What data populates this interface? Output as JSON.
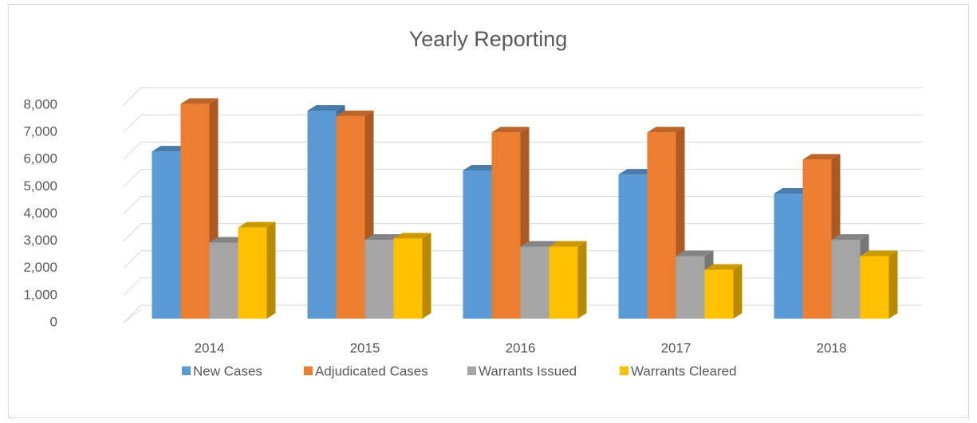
{
  "chart_data": {
    "type": "bar3d",
    "title": "Yearly Reporting",
    "categories": [
      "2014",
      "2015",
      "2016",
      "2017",
      "2018"
    ],
    "series": [
      {
        "name": "New Cases",
        "color": "#5b9bd5",
        "values": [
          6150,
          7650,
          5450,
          5300,
          4600
        ]
      },
      {
        "name": "Adjudicated Cases",
        "color": "#ed7d31",
        "values": [
          7900,
          7450,
          6850,
          6850,
          5850
        ]
      },
      {
        "name": "Warrants Issued",
        "color": "#a5a5a5",
        "values": [
          2800,
          2900,
          2650,
          2300,
          2900
        ]
      },
      {
        "name": "Warrants Cleared",
        "color": "#ffc000",
        "values": [
          3350,
          2950,
          2650,
          1800,
          2300
        ]
      }
    ],
    "ylim": [
      0,
      8000
    ],
    "yticks": [
      0,
      {
        "value": 1000,
        "label": "1,000"
      },
      {
        "value": 2000,
        "label": "2,000"
      },
      {
        "value": 3000,
        "label": "3,000"
      },
      {
        "value": 4000,
        "label": "4,000"
      },
      {
        "value": 5000,
        "label": "5,000"
      },
      {
        "value": 6000,
        "label": "6,000"
      },
      {
        "value": 7000,
        "label": "7,000"
      },
      {
        "value": 8000,
        "label": "8,000"
      }
    ],
    "grid": true,
    "legend": "bottom"
  }
}
